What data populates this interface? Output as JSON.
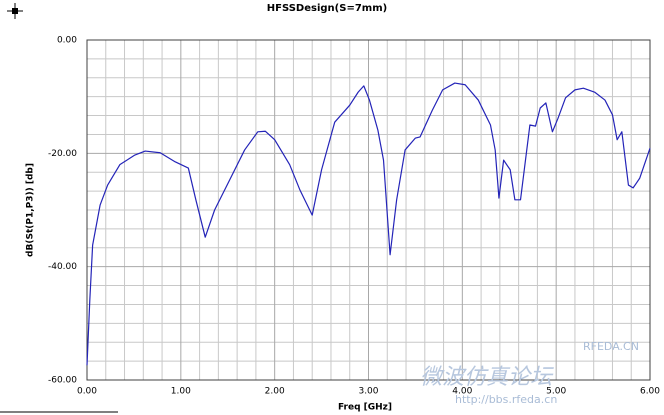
{
  "chart_data": {
    "type": "line",
    "title": "HFSSDesign(S=7mm)",
    "x_label": "Freq [GHz]",
    "y_label": "dB(St(P1,P3)) [db]",
    "xlim": [
      0,
      6
    ],
    "ylim": [
      -60,
      0
    ],
    "xticks": [
      {
        "value": 0,
        "label": "0.00"
      },
      {
        "value": 1,
        "label": "1.00"
      },
      {
        "value": 2,
        "label": "2.00"
      },
      {
        "value": 3,
        "label": "3.00"
      },
      {
        "value": 4,
        "label": "4.00"
      },
      {
        "value": 5,
        "label": "5.00"
      },
      {
        "value": 6,
        "label": "6.00"
      }
    ],
    "yticks": [
      {
        "value": -60,
        "label": "-60.00"
      },
      {
        "value": -40,
        "label": "-40.00"
      },
      {
        "value": -20,
        "label": "-20.00"
      },
      {
        "value": 0,
        "label": "0.00"
      }
    ],
    "grid": true,
    "watermark": [
      "RFEDA.CN",
      "http://bbs.rfeda.cn",
      "微波仿真论坛"
    ],
    "x": [
      0.0,
      0.03,
      0.06,
      0.14,
      0.22,
      0.35,
      0.51,
      0.62,
      0.78,
      0.94,
      1.08,
      1.16,
      1.26,
      1.36,
      1.52,
      1.68,
      1.82,
      1.9,
      2.0,
      2.16,
      2.27,
      2.4,
      2.5,
      2.64,
      2.8,
      2.89,
      2.95,
      3.01,
      3.1,
      3.16,
      3.23,
      3.3,
      3.39,
      3.5,
      3.55,
      3.68,
      3.79,
      3.92,
      4.03,
      4.17,
      4.3,
      4.35,
      4.39,
      4.44,
      4.51,
      4.56,
      4.62,
      4.72,
      4.78,
      4.83,
      4.89,
      4.96,
      5.02,
      5.1,
      5.2,
      5.29,
      5.41,
      5.52,
      5.6,
      5.65,
      5.7,
      5.77,
      5.82,
      5.89,
      6.0
    ],
    "series": [
      {
        "name": "dB(St(P1,P3))",
        "color": "#2424b8",
        "values": [
          -57.4,
          -45.9,
          -36.2,
          -29.1,
          -25.6,
          -22.0,
          -20.3,
          -19.6,
          -19.9,
          -21.5,
          -22.6,
          -28.2,
          -34.8,
          -30.0,
          -24.7,
          -19.4,
          -16.2,
          -16.1,
          -17.6,
          -22.0,
          -26.5,
          -30.9,
          -22.9,
          -14.5,
          -11.5,
          -9.2,
          -8.1,
          -10.6,
          -15.9,
          -21.2,
          -37.9,
          -28.2,
          -19.4,
          -17.3,
          -17.1,
          -12.4,
          -8.8,
          -7.6,
          -7.9,
          -10.6,
          -15.0,
          -19.4,
          -27.9,
          -21.2,
          -22.9,
          -28.2,
          -28.2,
          -15.0,
          -15.2,
          -12.0,
          -11.1,
          -16.2,
          -13.8,
          -10.2,
          -8.8,
          -8.5,
          -9.2,
          -10.6,
          -13.2,
          -17.6,
          -16.2,
          -25.6,
          -26.1,
          -24.4,
          -19.1
        ]
      }
    ]
  }
}
